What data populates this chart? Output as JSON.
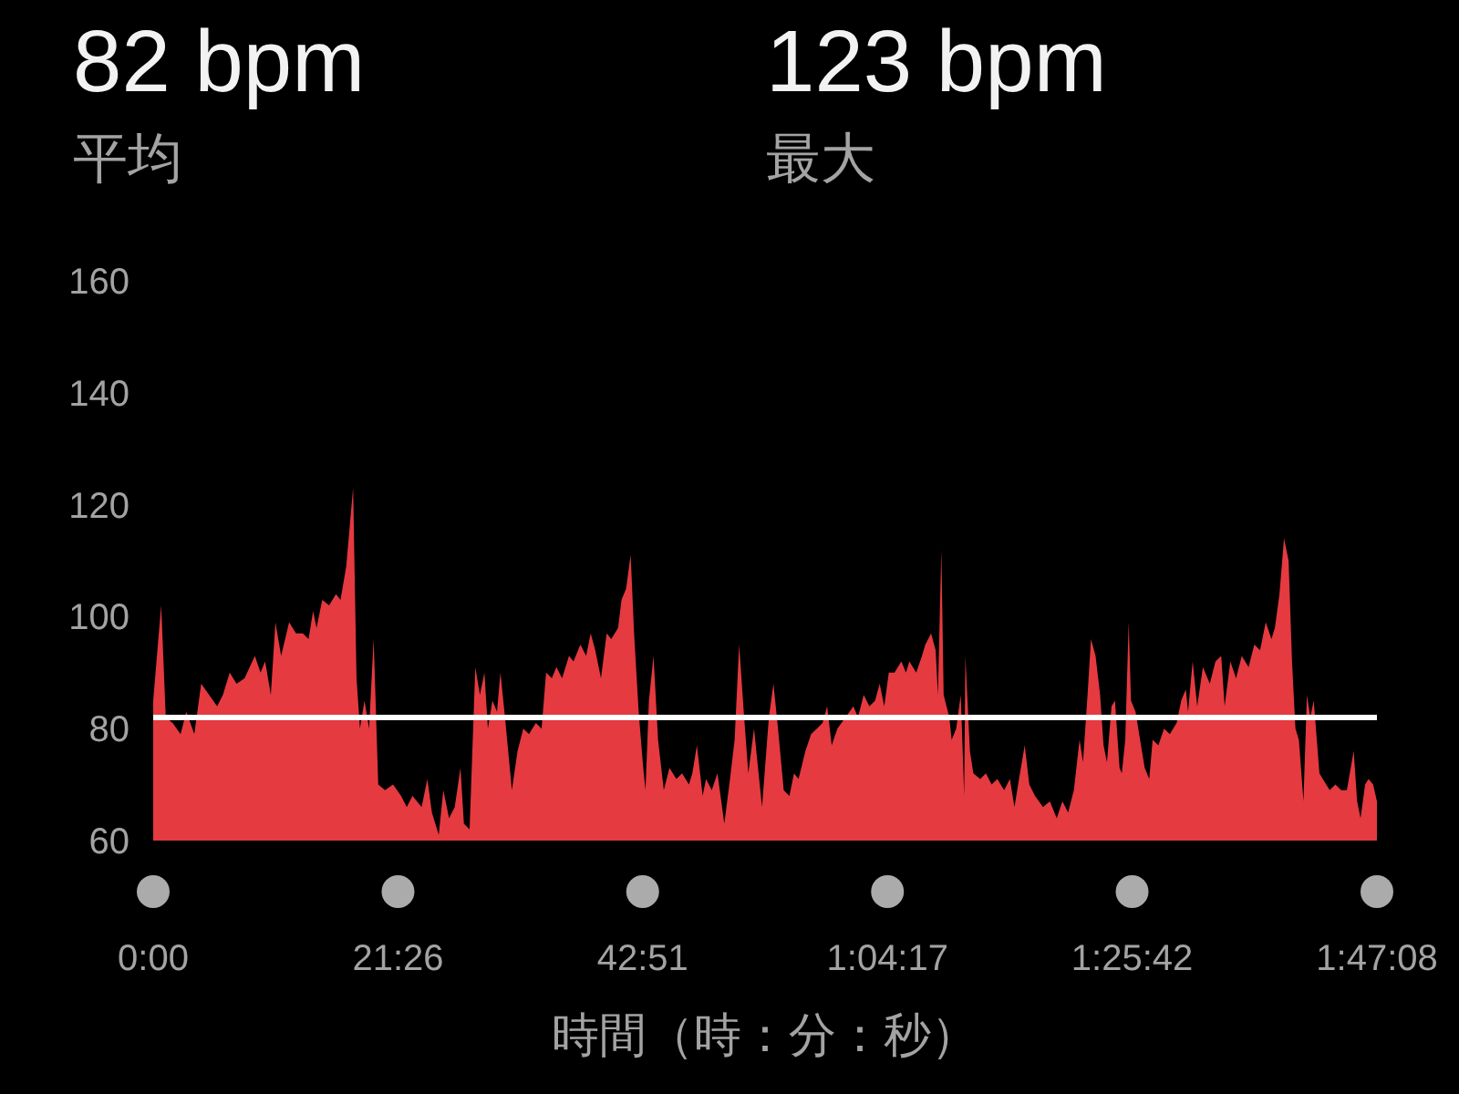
{
  "chart_data": {
    "type": "area",
    "annotations": [
      "82 bpm",
      "平均",
      "123 bpm",
      "最大"
    ],
    "xlabel": "時間（時：分：秒）",
    "color": "#e53a40",
    "x": [
      0,
      0.7,
      1.1,
      1.7,
      2.4,
      2.9,
      3.6,
      4.2,
      4.9,
      5.6,
      6.1,
      6.7,
      7.3,
      8.0,
      8.9,
      9.4,
      9.8,
      10.3,
      10.7,
      11.2,
      11.9,
      12.5,
      13.1,
      13.6,
      14.0,
      14.3,
      14.8,
      15.4,
      16.0,
      16.4,
      16.9,
      17.5,
      17.8,
      18.1,
      18.5,
      18.9,
      19.3,
      19.7,
      20.3,
      21.0,
      21.7,
      22.2,
      22.7,
      23.5,
      24.0,
      24.4,
      25.0,
      25.4,
      25.9,
      26.4,
      26.9,
      27.2,
      27.7,
      28.2,
      28.6,
      29.0,
      29.3,
      29.7,
      30.1,
      30.4,
      30.8,
      31.4,
      31.9,
      32.4,
      32.9,
      33.5,
      34.0,
      34.4,
      34.9,
      35.3,
      35.8,
      36.4,
      36.8,
      37.4,
      37.9,
      38.3,
      38.7,
      39.2,
      39.7,
      40.1,
      40.7,
      41.0,
      41.4,
      41.8,
      42.1,
      42.5,
      42.9,
      43.1,
      43.4,
      43.8,
      44.2,
      44.7,
      45.2,
      45.8,
      46.3,
      46.9,
      47.2,
      47.6,
      48.1,
      48.4,
      48.9,
      49.4,
      50.0,
      50.5,
      50.9,
      51.3,
      51.7,
      52.1,
      52.6,
      53.3,
      53.9,
      54.3,
      54.7,
      55.2,
      55.7,
      56.1,
      56.5,
      57.1,
      57.6,
      58.1,
      58.6,
      59.0,
      59.4,
      59.9,
      60.6,
      61.3,
      61.7,
      62.2,
      62.7,
      63.2,
      63.6,
      64.0,
      64.4,
      64.9,
      65.5,
      65.9,
      66.2,
      66.8,
      67.3,
      67.6,
      68.1,
      68.5,
      68.7,
      69.0,
      69.2,
      69.7,
      69.9,
      70.3,
      70.7,
      71.0,
      71.1,
      71.5,
      71.8,
      72.4,
      72.9,
      73.4,
      73.9,
      74.5,
      75.0,
      75.4,
      75.8,
      76.3,
      76.7,
      77.2,
      77.9,
      78.5,
      79.1,
      79.6,
      80.1,
      80.6,
      81.1,
      81.4,
      81.8,
      82.1,
      82.5,
      82.9,
      83.2,
      83.5,
      83.9,
      84.2,
      84.6,
      84.8,
      85.1,
      85.4,
      85.6,
      86.0,
      86.4,
      86.8,
      87.2,
      87.5,
      88.0,
      88.5,
      89.0,
      89.6,
      90.0,
      90.4,
      90.6,
      91.0,
      91.4,
      91.9,
      92.5,
      93.0,
      93.5,
      93.8,
      94.3,
      94.8,
      95.3,
      95.9,
      96.4,
      96.9,
      97.4,
      97.9,
      98.2,
      98.6,
      99.0,
      99.4,
      99.7,
      100.0,
      100.3,
      100.7,
      101.0,
      101.3,
      101.6,
      102.1,
      102.4,
      103.0,
      103.5,
      104.0,
      104.5,
      105.1,
      105.4,
      105.7,
      106.1,
      106.4,
      106.8,
      107.1333
    ],
    "values": [
      85,
      102,
      82,
      81,
      79,
      83,
      79,
      88,
      86,
      84,
      86,
      90,
      88,
      89,
      93,
      90,
      92,
      86,
      99,
      93,
      99,
      97,
      97,
      96,
      101,
      98,
      103,
      102,
      104,
      103,
      109,
      123,
      89,
      80,
      85,
      80,
      96,
      70,
      69,
      70,
      68,
      66,
      68,
      66,
      71,
      65,
      61,
      69,
      64,
      66,
      73,
      63,
      62,
      91,
      86,
      90,
      80,
      85,
      83,
      90,
      82,
      69,
      76,
      80,
      79,
      81,
      80,
      90,
      89,
      91,
      89,
      93,
      92,
      95,
      93,
      97,
      94,
      89,
      97,
      96,
      98,
      103,
      105,
      111,
      97,
      83,
      73,
      69,
      85,
      93,
      78,
      69,
      73,
      71,
      72,
      70,
      72,
      77,
      68,
      71,
      69,
      72,
      63,
      71,
      78,
      95,
      83,
      72,
      80,
      66,
      82,
      88,
      80,
      69,
      68,
      72,
      71,
      76,
      79,
      80,
      81,
      84,
      77,
      80,
      82,
      84,
      82,
      86,
      84,
      85,
      88,
      84,
      90,
      90,
      92,
      90,
      92,
      90,
      93,
      95,
      97,
      94,
      86,
      112,
      86,
      82,
      78,
      80,
      86,
      68,
      93,
      76,
      72,
      71,
      72,
      70,
      71,
      69,
      71,
      66,
      71,
      77,
      70,
      68,
      66,
      67,
      64,
      67,
      65,
      69,
      78,
      74,
      86,
      96,
      93,
      86,
      77,
      74,
      84,
      85,
      73,
      72,
      78,
      99,
      85,
      83,
      78,
      73,
      71,
      78,
      77,
      80,
      79,
      81,
      85,
      87,
      83,
      92,
      84,
      91,
      88,
      92,
      93,
      84,
      92,
      89,
      93,
      91,
      95,
      94,
      99,
      96,
      98,
      104,
      114,
      110,
      92,
      80,
      78,
      67,
      86,
      82,
      85,
      72,
      71,
      69,
      70,
      69,
      69,
      76,
      67,
      64,
      70,
      71,
      70,
      67
    ],
    "xlim": [
      0,
      107.1333
    ],
    "xticks": [
      {
        "value": 0,
        "label": "0:00"
      },
      {
        "value": 21.4333,
        "label": "21:26"
      },
      {
        "value": 42.85,
        "label": "42:51"
      },
      {
        "value": 64.2833,
        "label": "1:04:17"
      },
      {
        "value": 85.7,
        "label": "1:25:42"
      },
      {
        "value": 107.1333,
        "label": "1:47:08"
      }
    ],
    "ylim": [
      60,
      160
    ],
    "yticks": [
      60,
      80,
      100,
      120,
      140,
      160
    ],
    "ref_lines": [
      {
        "axis": "y",
        "value": 82,
        "color": "#ffffff"
      }
    ]
  }
}
